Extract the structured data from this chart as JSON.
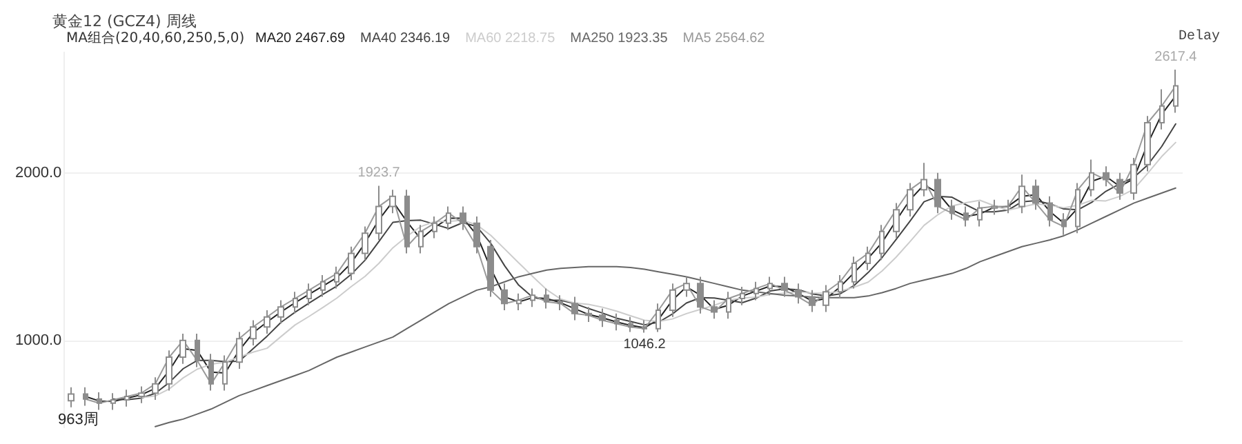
{
  "chart_data": {
    "type": "candlestick",
    "title": "黄金12 (GCZ4) 周线",
    "legend_title": "MA组合(20,40,60,250,5,0)",
    "categories": [
      null,
      null,
      null,
      null,
      null,
      null,
      null,
      null,
      null,
      null,
      null,
      null,
      null,
      null,
      null,
      null,
      null,
      null,
      null,
      null,
      null,
      null,
      null,
      null,
      null,
      null,
      null,
      null,
      null,
      null,
      null,
      null,
      null,
      null,
      null,
      null,
      null,
      null,
      null,
      null,
      null,
      null,
      null,
      null,
      null,
      null,
      null,
      null,
      null,
      null,
      null,
      null,
      null,
      null,
      null,
      null,
      null,
      null,
      null,
      null,
      null,
      null,
      null,
      null,
      null,
      null,
      null,
      null,
      null,
      null,
      null,
      null,
      null,
      null,
      null,
      null,
      null,
      null,
      null,
      null
    ],
    "color": "#8c8c8c",
    "ohlc": [
      [
        640,
        720,
        600,
        680
      ],
      [
        680,
        720,
        610,
        650
      ],
      [
        650,
        690,
        585,
        625
      ],
      [
        625,
        685,
        585,
        645
      ],
      [
        645,
        705,
        605,
        665
      ],
      [
        665,
        725,
        625,
        685
      ],
      [
        685,
        780,
        645,
        740
      ],
      [
        740,
        940,
        700,
        900
      ],
      [
        900,
        1040,
        860,
        1000
      ],
      [
        1000,
        1040,
        840,
        880
      ],
      [
        880,
        920,
        700,
        740
      ],
      [
        740,
        910,
        700,
        870
      ],
      [
        870,
        1050,
        830,
        1010
      ],
      [
        1010,
        1120,
        970,
        1080
      ],
      [
        1080,
        1180,
        1040,
        1140
      ],
      [
        1140,
        1240,
        1100,
        1200
      ],
      [
        1200,
        1290,
        1160,
        1250
      ],
      [
        1250,
        1340,
        1210,
        1300
      ],
      [
        1300,
        1390,
        1260,
        1350
      ],
      [
        1350,
        1440,
        1310,
        1400
      ],
      [
        1400,
        1560,
        1360,
        1520
      ],
      [
        1520,
        1680,
        1480,
        1640
      ],
      [
        1640,
        1923.7,
        1600,
        1800
      ],
      [
        1800,
        1900,
        1760,
        1860
      ],
      [
        1860,
        1900,
        1520,
        1560
      ],
      [
        1560,
        1690,
        1520,
        1650
      ],
      [
        1650,
        1740,
        1610,
        1700
      ],
      [
        1700,
        1800,
        1660,
        1760
      ],
      [
        1760,
        1800,
        1660,
        1700
      ],
      [
        1700,
        1740,
        1520,
        1560
      ],
      [
        1560,
        1600,
        1260,
        1300
      ],
      [
        1300,
        1340,
        1180,
        1220
      ],
      [
        1220,
        1280,
        1180,
        1240
      ],
      [
        1240,
        1310,
        1200,
        1270
      ],
      [
        1270,
        1310,
        1190,
        1230
      ],
      [
        1230,
        1270,
        1180,
        1220
      ],
      [
        1220,
        1260,
        1120,
        1160
      ],
      [
        1160,
        1200,
        1110,
        1150
      ],
      [
        1150,
        1190,
        1080,
        1120
      ],
      [
        1120,
        1160,
        1060,
        1100
      ],
      [
        1100,
        1140,
        1050,
        1080
      ],
      [
        1080,
        1120,
        1046.2,
        1070
      ],
      [
        1070,
        1220,
        1050,
        1180
      ],
      [
        1180,
        1340,
        1140,
        1300
      ],
      [
        1300,
        1380,
        1260,
        1340
      ],
      [
        1340,
        1380,
        1160,
        1200
      ],
      [
        1200,
        1240,
        1130,
        1170
      ],
      [
        1170,
        1290,
        1130,
        1250
      ],
      [
        1250,
        1320,
        1210,
        1280
      ],
      [
        1280,
        1350,
        1240,
        1310
      ],
      [
        1310,
        1380,
        1270,
        1340
      ],
      [
        1340,
        1380,
        1260,
        1300
      ],
      [
        1300,
        1340,
        1220,
        1260
      ],
      [
        1260,
        1300,
        1170,
        1210
      ],
      [
        1210,
        1330,
        1170,
        1290
      ],
      [
        1290,
        1390,
        1250,
        1350
      ],
      [
        1350,
        1500,
        1310,
        1460
      ],
      [
        1460,
        1560,
        1420,
        1520
      ],
      [
        1520,
        1690,
        1480,
        1650
      ],
      [
        1650,
        1820,
        1610,
        1780
      ],
      [
        1780,
        1940,
        1740,
        1900
      ],
      [
        1900,
        2060,
        1860,
        1960
      ],
      [
        1960,
        2000,
        1760,
        1800
      ],
      [
        1800,
        1840,
        1720,
        1760
      ],
      [
        1760,
        1800,
        1680,
        1720
      ],
      [
        1720,
        1830,
        1680,
        1790
      ],
      [
        1790,
        1840,
        1750,
        1800
      ],
      [
        1800,
        1840,
        1760,
        1800
      ],
      [
        1800,
        1990,
        1760,
        1920
      ],
      [
        1920,
        1960,
        1780,
        1820
      ],
      [
        1820,
        1860,
        1680,
        1720
      ],
      [
        1720,
        1760,
        1630,
        1680
      ],
      [
        1680,
        1940,
        1640,
        1900
      ],
      [
        1900,
        2080,
        1860,
        2000
      ],
      [
        2000,
        2040,
        1920,
        1960
      ],
      [
        1960,
        2000,
        1840,
        1880
      ],
      [
        1880,
        2090,
        1840,
        2050
      ],
      [
        2050,
        2340,
        2010,
        2300
      ],
      [
        2300,
        2500,
        2260,
        2400
      ],
      [
        2400,
        2617.4,
        2360,
        2520
      ]
    ],
    "series": [
      {
        "name": "MA20 2467.69",
        "color": "#222222",
        "type": "line",
        "values": [
          null,
          665,
          638,
          635,
          655,
          675,
          713,
          820,
          950,
          940,
          810,
          805,
          940,
          1045,
          1110,
          1170,
          1225,
          1275,
          1325,
          1375,
          1460,
          1580,
          1720,
          1830,
          1710,
          1605,
          1675,
          1730,
          1730,
          1630,
          1430,
          1260,
          1230,
          1255,
          1250,
          1225,
          1190,
          1155,
          1135,
          1110,
          1090,
          1075,
          1125,
          1240,
          1320,
          1270,
          1185,
          1210,
          1265,
          1295,
          1325,
          1320,
          1280,
          1235,
          1250,
          1320,
          1405,
          1490,
          1585,
          1715,
          1840,
          1930,
          1880,
          1780,
          1740,
          1755,
          1795,
          1800,
          1860,
          1870,
          1770,
          1700,
          1790,
          1950,
          1980,
          1920,
          1965,
          2175,
          2350,
          2460
        ]
      },
      {
        "name": "MA40 2346.19",
        "color": "#444444",
        "type": "line",
        "values": [
          null,
          null,
          null,
          650,
          646,
          655,
          684,
          748,
          831,
          880,
          880,
          873,
          875,
          950,
          1025,
          1108,
          1168,
          1223,
          1275,
          1325,
          1393,
          1478,
          1590,
          1705,
          1715,
          1718,
          1693,
          1668,
          1703,
          1680,
          1580,
          1445,
          1330,
          1258,
          1240,
          1240,
          1220,
          1190,
          1163,
          1133,
          1113,
          1093,
          1108,
          1158,
          1223,
          1255,
          1253,
          1240,
          1225,
          1253,
          1295,
          1308,
          1303,
          1278,
          1265,
          1278,
          1328,
          1405,
          1495,
          1603,
          1713,
          1828,
          1860,
          1855,
          1810,
          1768,
          1768,
          1778,
          1828,
          1835,
          1815,
          1785,
          1780,
          1825,
          1890,
          1935,
          1973,
          2048,
          2158,
          2293
        ]
      },
      {
        "name": "MA60 2218.75",
        "color": "#cccccc",
        "type": "line",
        "values": [
          null,
          null,
          null,
          null,
          null,
          658,
          668,
          710,
          776,
          828,
          858,
          870,
          900,
          930,
          953,
          1023,
          1092,
          1143,
          1197,
          1253,
          1320,
          1382,
          1460,
          1553,
          1622,
          1680,
          1710,
          1710,
          1718,
          1690,
          1628,
          1546,
          1463,
          1382,
          1303,
          1247,
          1223,
          1215,
          1198,
          1175,
          1147,
          1120,
          1113,
          1128,
          1160,
          1185,
          1210,
          1240,
          1253,
          1258,
          1275,
          1282,
          1290,
          1283,
          1282,
          1293,
          1318,
          1348,
          1415,
          1497,
          1590,
          1687,
          1751,
          1803,
          1822,
          1837,
          1805,
          1778,
          1797,
          1815,
          1808,
          1792,
          1807,
          1837,
          1833,
          1860,
          1902,
          1998,
          2098,
          2182
        ]
      },
      {
        "name": "MA250 1923.35",
        "color": "#666666",
        "type": "line",
        "values": [
          null,
          null,
          null,
          null,
          null,
          null,
          485,
          510,
          530,
          560,
          590,
          630,
          670,
          700,
          730,
          760,
          790,
          820,
          860,
          900,
          930,
          960,
          990,
          1020,
          1070,
          1120,
          1170,
          1220,
          1260,
          1300,
          1320,
          1350,
          1380,
          1400,
          1420,
          1430,
          1435,
          1440,
          1440,
          1440,
          1435,
          1425,
          1410,
          1395,
          1380,
          1360,
          1340,
          1320,
          1300,
          1290,
          1280,
          1270,
          1265,
          1258,
          1255,
          1255,
          1255,
          1265,
          1285,
          1310,
          1340,
          1360,
          1380,
          1400,
          1430,
          1470,
          1500,
          1530,
          1560,
          1580,
          1600,
          1625,
          1660,
          1700,
          1740,
          1780,
          1820,
          1850,
          1880,
          1910
        ]
      },
      {
        "name": "MA5 2564.62",
        "color": "#999999",
        "type": "line",
        "values": [
          null,
          650,
          625,
          645,
          665,
          685,
          740,
          900,
          1000,
          880,
          740,
          870,
          1010,
          1080,
          1140,
          1200,
          1250,
          1300,
          1350,
          1400,
          1520,
          1640,
          1800,
          1860,
          1560,
          1650,
          1700,
          1760,
          1700,
          1560,
          1300,
          1220,
          1240,
          1270,
          1230,
          1220,
          1160,
          1150,
          1120,
          1100,
          1080,
          1070,
          1180,
          1300,
          1340,
          1200,
          1170,
          1250,
          1280,
          1310,
          1340,
          1300,
          1260,
          1210,
          1290,
          1350,
          1460,
          1520,
          1650,
          1780,
          1900,
          1960,
          1800,
          1760,
          1720,
          1790,
          1800,
          1800,
          1920,
          1820,
          1720,
          1680,
          1900,
          2000,
          1960,
          1880,
          2050,
          2300,
          2400,
          2520
        ]
      }
    ],
    "ylim": [
      480,
      2720
    ],
    "yticks": [
      {
        "value": 1000,
        "label": "1000.0"
      },
      {
        "value": 2000,
        "label": "2000.0"
      }
    ],
    "grid": "y",
    "legend": "top left",
    "marker": "none",
    "line_style": "solid",
    "tick_labels": "y",
    "annotations": [
      {
        "text": "1923.7",
        "y": 1923.7
      },
      {
        "text": "1046.2",
        "y": 1046.2
      },
      {
        "text": "2617.4",
        "y": 2617.4
      },
      "963周",
      "Delay"
    ]
  }
}
